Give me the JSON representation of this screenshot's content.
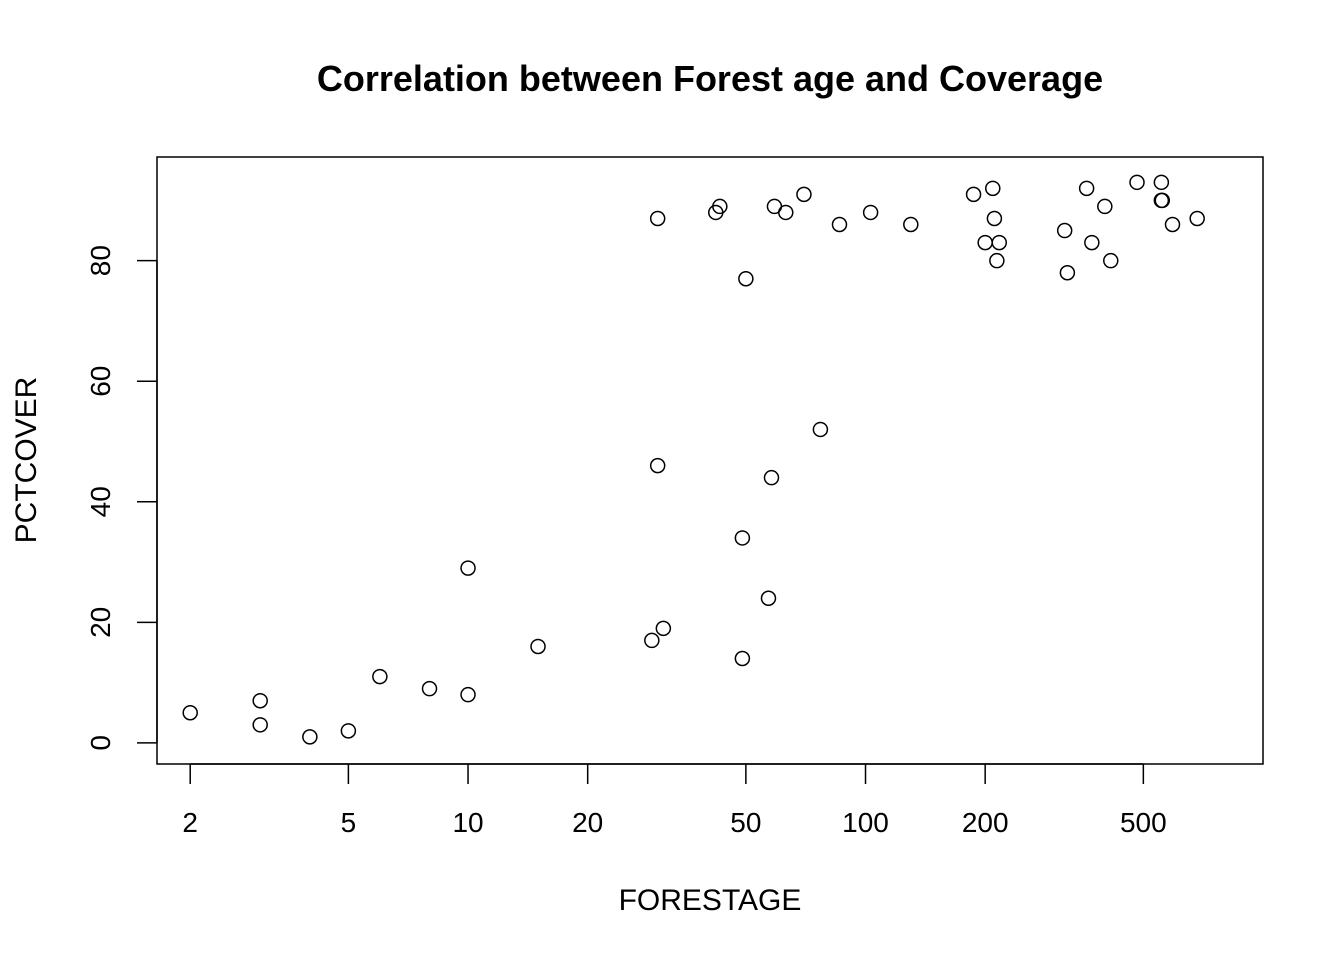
{
  "chart_data": {
    "type": "scatter",
    "title": "Correlation between Forest age and Coverage",
    "xlabel": "FORESTAGE",
    "ylabel": "PCTCOVER",
    "x_scale": "log",
    "xlim": [
      1.65,
      1000
    ],
    "ylim": [
      -3.5,
      97.2
    ],
    "x_ticks": [
      2,
      5,
      10,
      20,
      50,
      100,
      200,
      500
    ],
    "x_tick_labels": [
      "2",
      "5",
      "10",
      "20",
      "50",
      "100",
      "200",
      "500"
    ],
    "y_ticks": [
      0,
      20,
      40,
      60,
      80
    ],
    "y_tick_labels": [
      "0",
      "20",
      "40",
      "60",
      "80"
    ],
    "grid": false,
    "legend": "none",
    "points": [
      {
        "x": 2,
        "y": 5
      },
      {
        "x": 3,
        "y": 7
      },
      {
        "x": 3,
        "y": 3
      },
      {
        "x": 4,
        "y": 1
      },
      {
        "x": 5,
        "y": 2
      },
      {
        "x": 6,
        "y": 11
      },
      {
        "x": 8,
        "y": 9
      },
      {
        "x": 10,
        "y": 8
      },
      {
        "x": 10,
        "y": 29
      },
      {
        "x": 15,
        "y": 16
      },
      {
        "x": 29,
        "y": 17
      },
      {
        "x": 30,
        "y": 46
      },
      {
        "x": 30,
        "y": 87
      },
      {
        "x": 31,
        "y": 19
      },
      {
        "x": 42,
        "y": 88
      },
      {
        "x": 43,
        "y": 89
      },
      {
        "x": 49,
        "y": 14
      },
      {
        "x": 49,
        "y": 34
      },
      {
        "x": 50,
        "y": 77
      },
      {
        "x": 57,
        "y": 24
      },
      {
        "x": 58,
        "y": 44
      },
      {
        "x": 59,
        "y": 89
      },
      {
        "x": 63,
        "y": 88
      },
      {
        "x": 70,
        "y": 91
      },
      {
        "x": 77,
        "y": 52
      },
      {
        "x": 86,
        "y": 86
      },
      {
        "x": 103,
        "y": 88
      },
      {
        "x": 130,
        "y": 86
      },
      {
        "x": 187,
        "y": 91
      },
      {
        "x": 200,
        "y": 83
      },
      {
        "x": 209,
        "y": 92
      },
      {
        "x": 211,
        "y": 87
      },
      {
        "x": 214,
        "y": 80
      },
      {
        "x": 217,
        "y": 83
      },
      {
        "x": 317,
        "y": 85
      },
      {
        "x": 322,
        "y": 78
      },
      {
        "x": 360,
        "y": 92
      },
      {
        "x": 371,
        "y": 83
      },
      {
        "x": 400,
        "y": 89
      },
      {
        "x": 414,
        "y": 80
      },
      {
        "x": 482,
        "y": 93
      },
      {
        "x": 555,
        "y": 93
      },
      {
        "x": 555,
        "y": 90
      },
      {
        "x": 558,
        "y": 90
      },
      {
        "x": 592,
        "y": 86
      },
      {
        "x": 683,
        "y": 87
      }
    ]
  }
}
